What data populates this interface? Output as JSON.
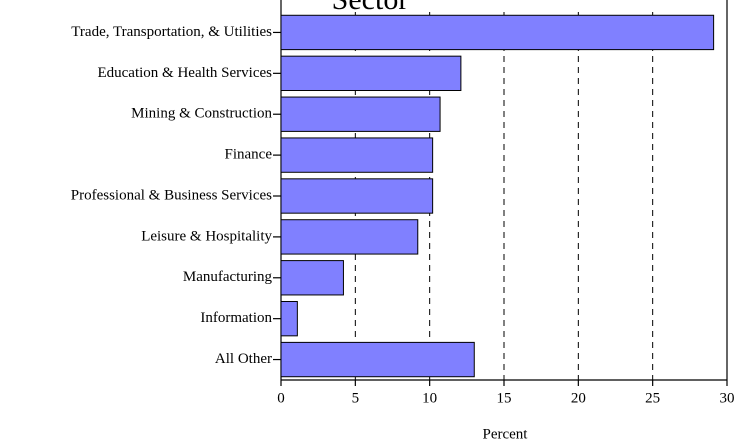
{
  "chart_data": {
    "type": "barh",
    "title": "Sector",
    "xlabel": "Percent",
    "categories": [
      "Trade, Transportation, & Utilities",
      "Education & Health Services",
      "Mining & Construction",
      "Finance",
      "Professional & Business Services",
      "Leisure & Hospitality",
      "Manufacturing",
      "Information",
      "All Other"
    ],
    "values": [
      29.1,
      12.1,
      10.7,
      10.2,
      10.2,
      9.2,
      4.2,
      1.1,
      13.0
    ],
    "color": "#8080ff",
    "xlim": [
      0,
      30
    ],
    "xticks": [
      0,
      5,
      10,
      15,
      20,
      25,
      30
    ],
    "grid": true
  }
}
